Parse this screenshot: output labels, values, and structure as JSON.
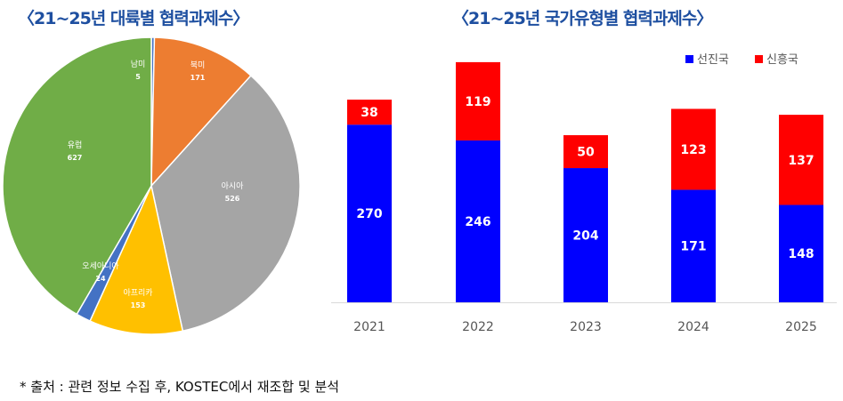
{
  "titles": {
    "pie": "〈21~25년 대륙별 협력과제수〉",
    "bar": "〈21~25년 국가유형별 협력과제수〉"
  },
  "source": "* 출처 : 관련 정보 수집 후, KOSTEC에서 재조합 및 분석",
  "chart_data": [
    {
      "type": "pie",
      "title": "〈21~25년 대륙별 협력과제수〉",
      "start": "12 o'clock clockwise",
      "slices": [
        {
          "label": "남미",
          "value": 5,
          "color": "#4472c4"
        },
        {
          "label": "북미",
          "value": 171,
          "color": "#ed7d31"
        },
        {
          "label": "아시아",
          "value": 526,
          "color": "#a5a5a5"
        },
        {
          "label": "아프리카",
          "value": 153,
          "color": "#ffc000"
        },
        {
          "label": "오세아니아",
          "value": 24,
          "color": "#4472c4"
        },
        {
          "label": "유럽",
          "value": 627,
          "color": "#70ad47"
        }
      ]
    },
    {
      "type": "bar",
      "stacked": true,
      "title": "〈21~25년 국가유형별 협력과제수〉",
      "categories": [
        "2021",
        "2022",
        "2023",
        "2024",
        "2025"
      ],
      "series": [
        {
          "name": "선진국",
          "values": [
            270,
            246,
            204,
            171,
            148
          ],
          "color": "#0000ff"
        },
        {
          "name": "신흥국",
          "values": [
            38,
            119,
            50,
            123,
            137
          ],
          "color": "#ff0000"
        }
      ],
      "legend": "top-right"
    }
  ]
}
